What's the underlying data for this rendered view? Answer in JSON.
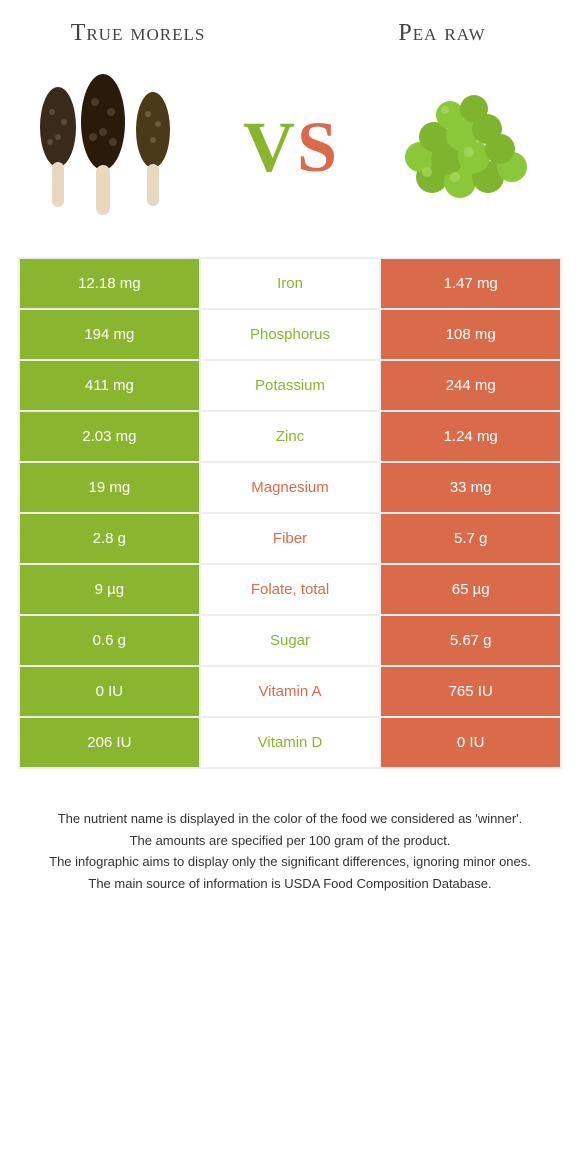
{
  "left_food": {
    "title": "True morels"
  },
  "right_food": {
    "title": "Pea raw"
  },
  "vs": {
    "v": "V",
    "s": "S"
  },
  "colors": {
    "green": "#8ab52e",
    "orange": "#d96b4a"
  },
  "rows": [
    {
      "left": "12.18 mg",
      "nutrient": "Iron",
      "right": "1.47 mg",
      "winner": "left"
    },
    {
      "left": "194 mg",
      "nutrient": "Phosphorus",
      "right": "108 mg",
      "winner": "left"
    },
    {
      "left": "411 mg",
      "nutrient": "Potassium",
      "right": "244 mg",
      "winner": "left"
    },
    {
      "left": "2.03 mg",
      "nutrient": "Zinc",
      "right": "1.24 mg",
      "winner": "left"
    },
    {
      "left": "19 mg",
      "nutrient": "Magnesium",
      "right": "33 mg",
      "winner": "right"
    },
    {
      "left": "2.8 g",
      "nutrient": "Fiber",
      "right": "5.7 g",
      "winner": "right"
    },
    {
      "left": "9 µg",
      "nutrient": "Folate, total",
      "right": "65 µg",
      "winner": "right"
    },
    {
      "left": "0.6 g",
      "nutrient": "Sugar",
      "right": "5.67 g",
      "winner": "left"
    },
    {
      "left": "0 IU",
      "nutrient": "Vitamin A",
      "right": "765 IU",
      "winner": "right"
    },
    {
      "left": "206 IU",
      "nutrient": "Vitamin D",
      "right": "0 IU",
      "winner": "left"
    }
  ],
  "footnotes": [
    "The nutrient name is displayed in the color of the food we considered as 'winner'.",
    "The amounts are specified per 100 gram of the product.",
    "The infographic aims to display only the significant differences, ignoring minor ones.",
    "The main source of information is USDA Food Composition Database."
  ]
}
